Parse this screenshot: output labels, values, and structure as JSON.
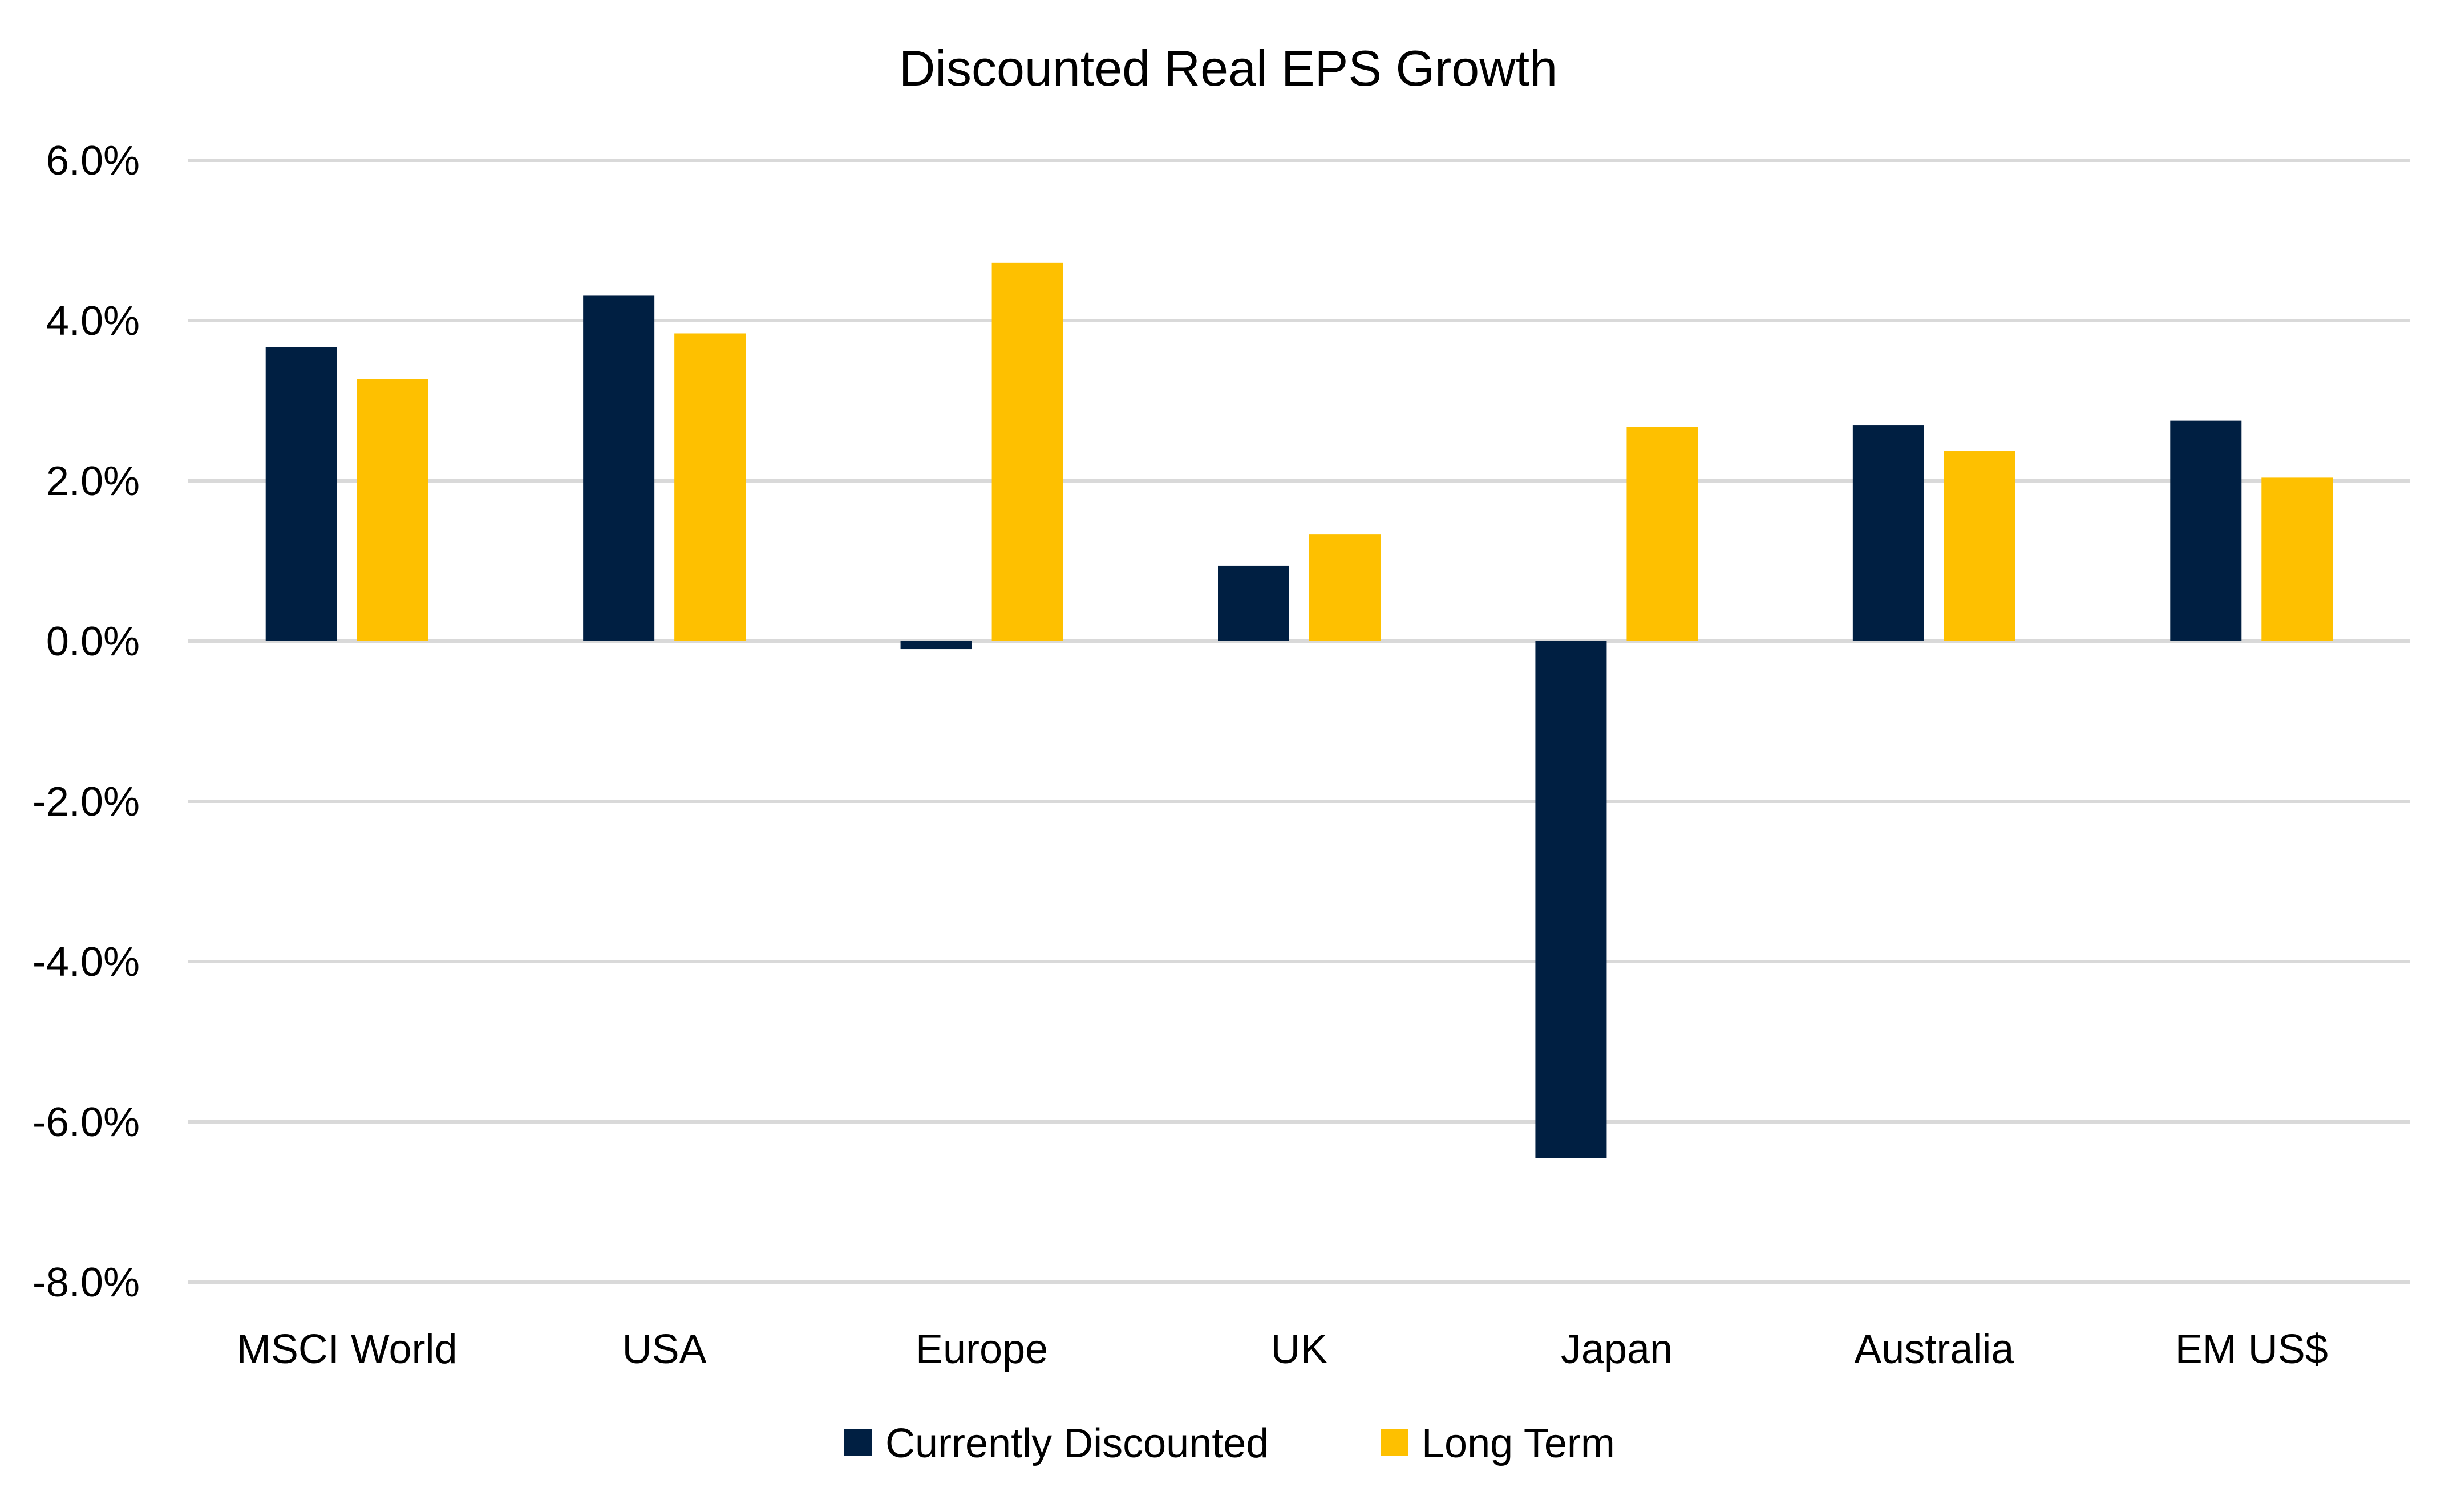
{
  "chart_data": {
    "type": "bar",
    "title": "Discounted Real EPS Growth",
    "xlabel": "",
    "ylabel": "",
    "ylim": [
      -8.0,
      6.0
    ],
    "yticks": [
      6.0,
      4.0,
      2.0,
      0.0,
      -2.0,
      -4.0,
      -6.0,
      -8.0
    ],
    "ytick_labels": [
      "6.0%",
      "4.0%",
      "2.0%",
      "0.0%",
      "-2.0%",
      "-4.0%",
      "-6.0%",
      "-8.0%"
    ],
    "grid": true,
    "legend_position": "bottom",
    "categories": [
      "MSCI World",
      "USA",
      "Europe",
      "UK",
      "Japan",
      "Australia",
      "EM US$"
    ],
    "series": [
      {
        "name": "Currently Discounted",
        "color": "#001f42",
        "values": [
          3.67,
          4.31,
          -0.1,
          0.94,
          -6.45,
          2.69,
          2.75
        ]
      },
      {
        "name": "Long Term",
        "color": "#fec000",
        "values": [
          3.27,
          3.84,
          4.72,
          1.33,
          2.67,
          2.37,
          2.04
        ]
      }
    ]
  }
}
